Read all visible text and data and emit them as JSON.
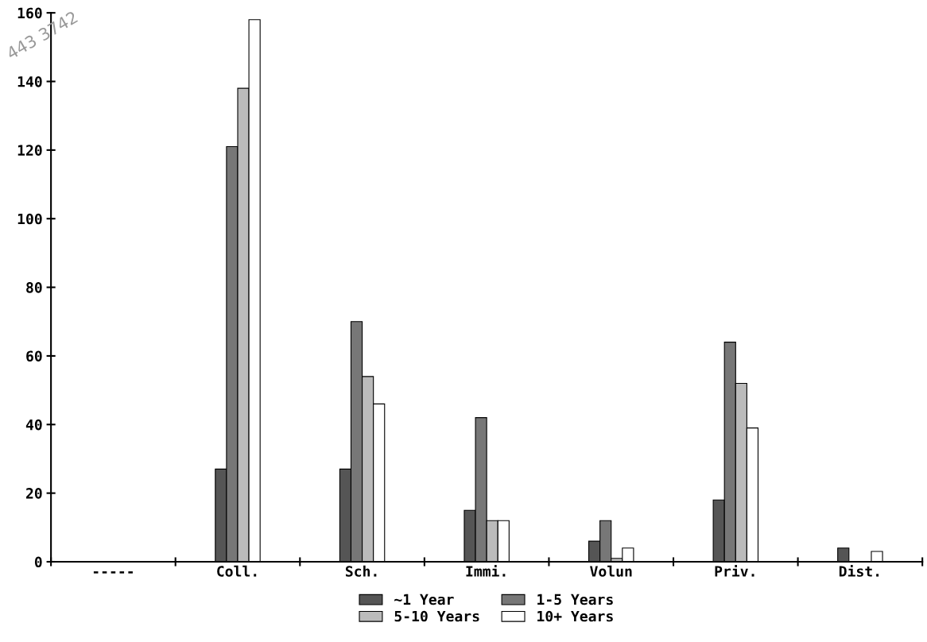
{
  "chart_data": {
    "type": "bar",
    "categories": [
      "-----",
      "Coll.",
      "Sch.",
      "Immi.",
      "Volun",
      "Priv.",
      "Dist."
    ],
    "series": [
      {
        "name": "~1 Year",
        "color": "#555555",
        "values": [
          null,
          27,
          27,
          15,
          6,
          18,
          4
        ]
      },
      {
        "name": "1-5 Years",
        "color": "#777777",
        "values": [
          null,
          121,
          70,
          42,
          12,
          64,
          null
        ]
      },
      {
        "name": "5-10 Years",
        "color": "#bbbbbb",
        "values": [
          null,
          138,
          54,
          12,
          1,
          52,
          null
        ]
      },
      {
        "name": "10+ Years",
        "color": "#ffffff",
        "values": [
          null,
          158,
          46,
          12,
          4,
          39,
          3
        ]
      }
    ],
    "ylim": [
      0,
      160
    ],
    "yticks": [
      0,
      20,
      40,
      60,
      80,
      100,
      120,
      140,
      160
    ],
    "grid": false,
    "legend": "bottom",
    "annotations": [
      "443 3742"
    ]
  }
}
